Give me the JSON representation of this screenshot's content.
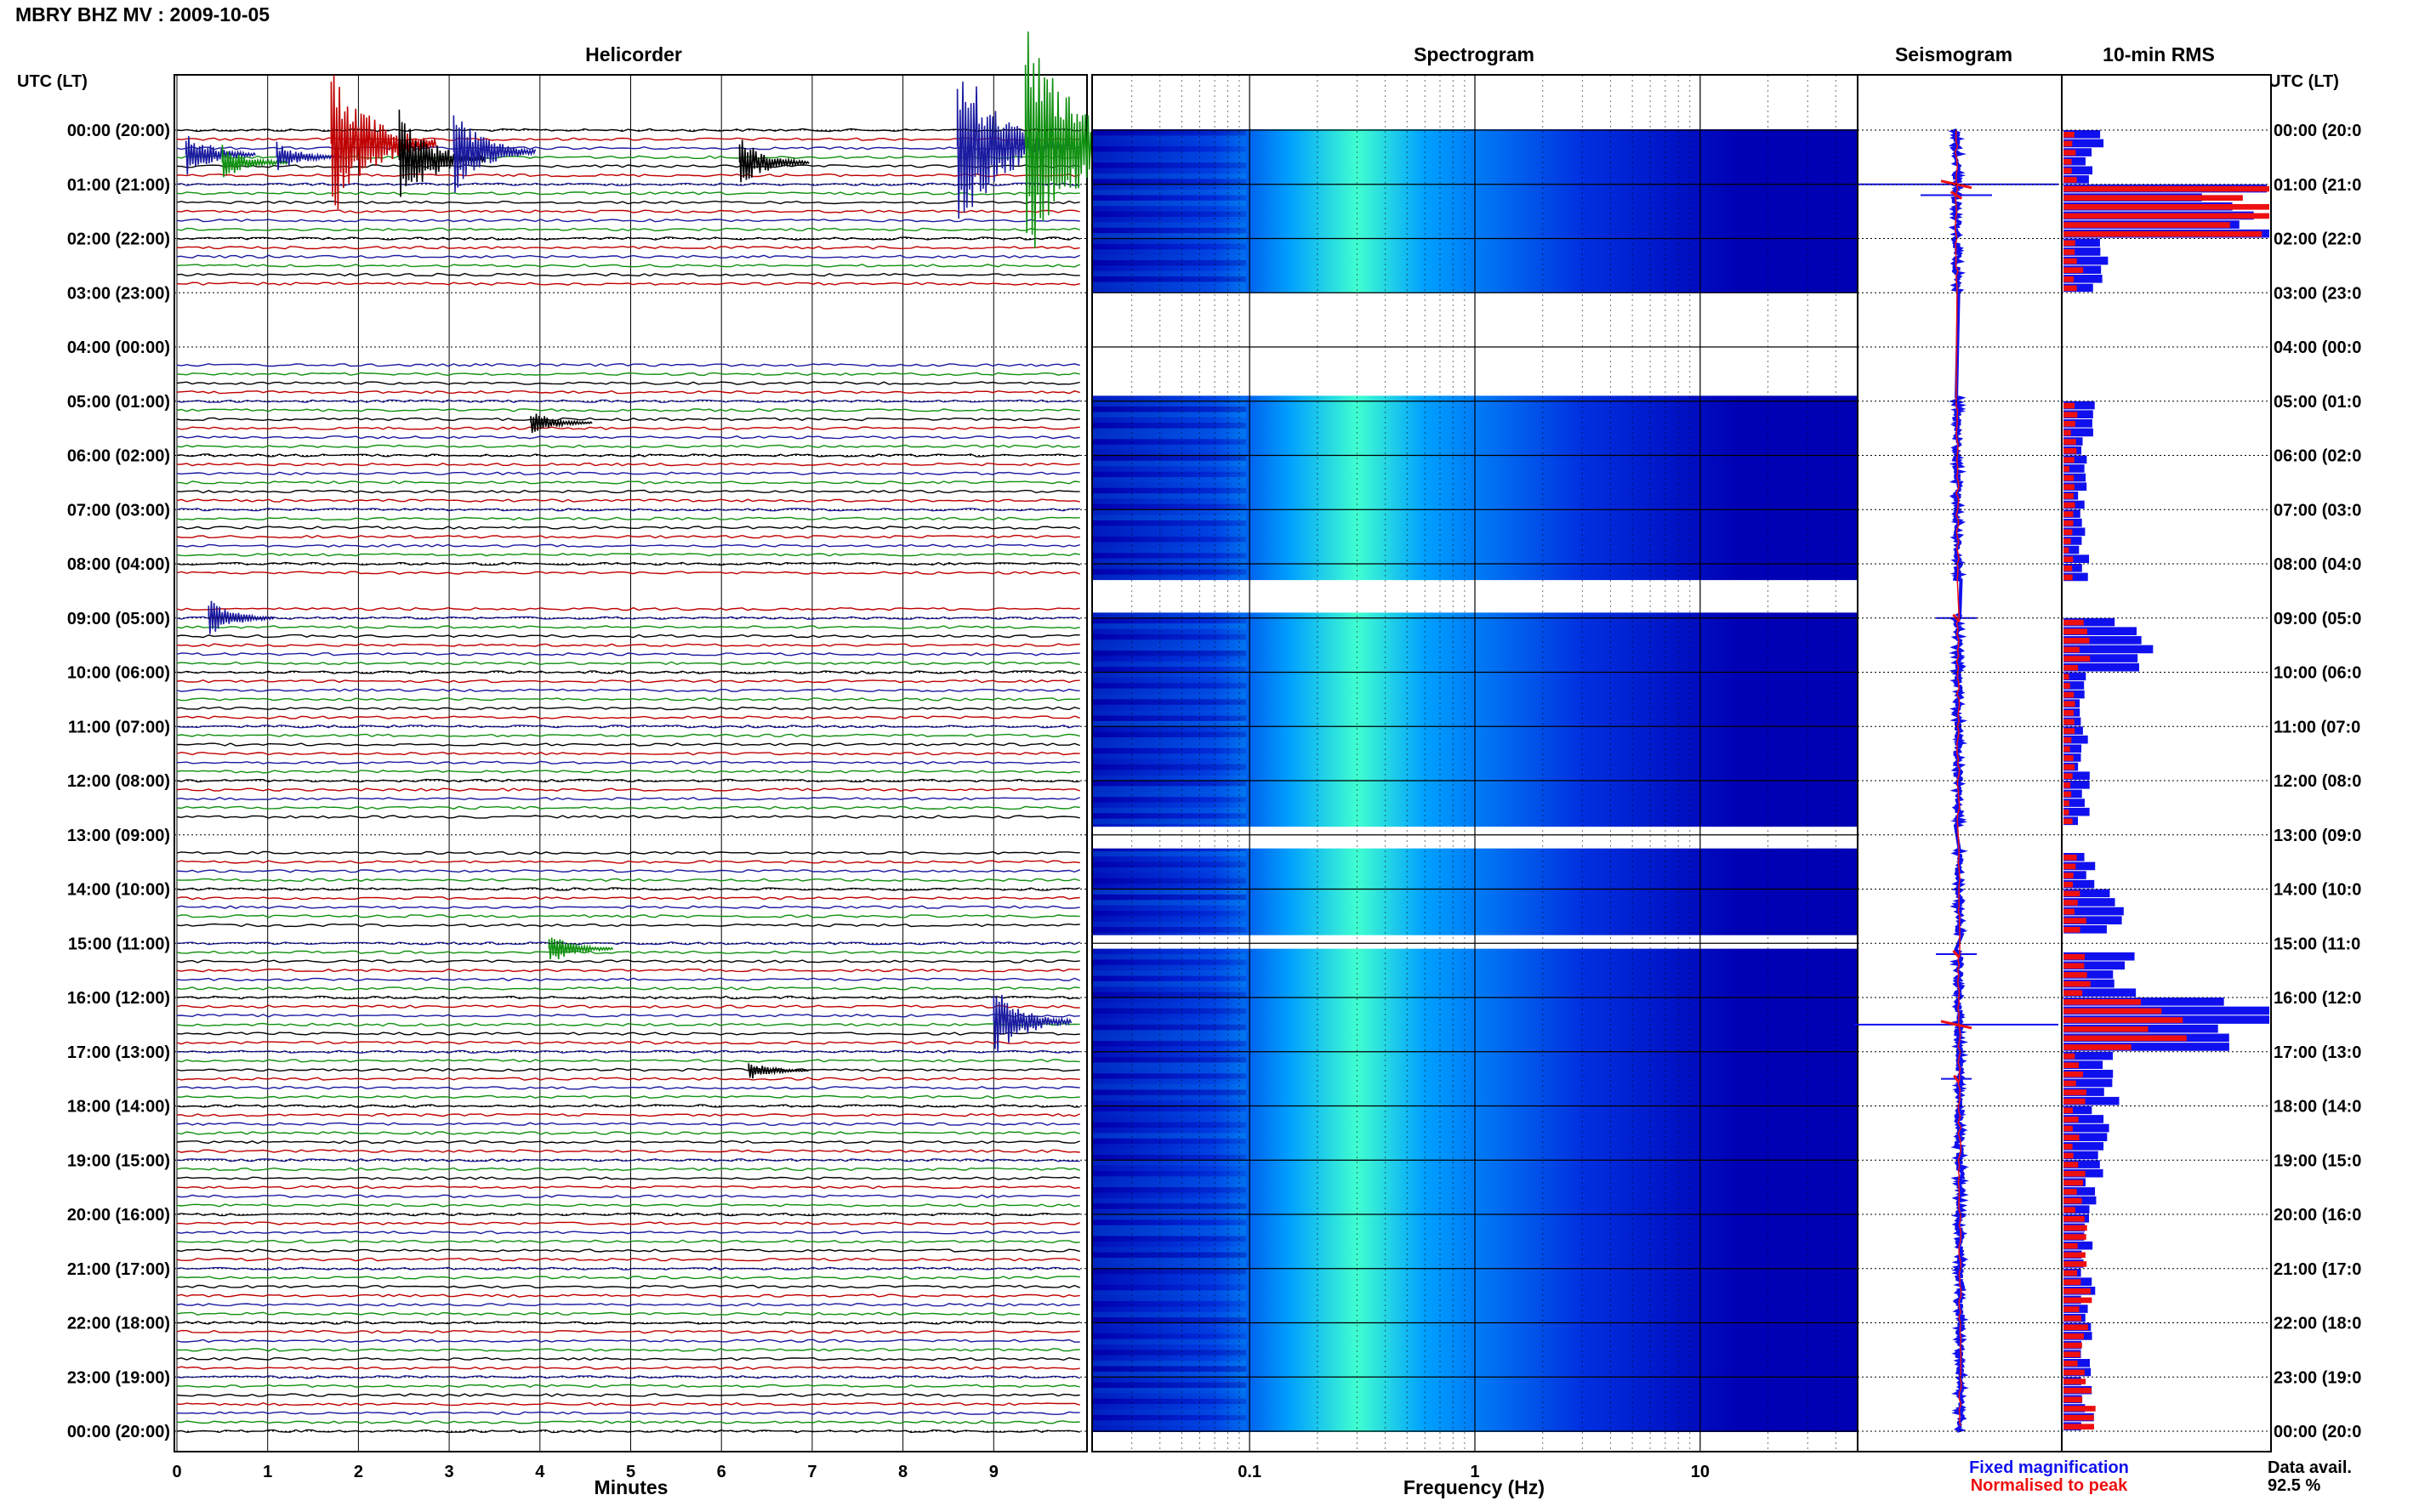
{
  "title": "MBRY BHZ MV : 2009-10-05",
  "headers": {
    "utc_left": "UTC (LT)",
    "helicorder": "Helicorder",
    "spectrogram": "Spectrogram",
    "seismogram": "Seismogram",
    "rms": "10-min RMS",
    "utc_right": "UTC (LT)"
  },
  "xlabels": {
    "helicorder": "Minutes",
    "spectrogram": "Frequency (Hz)"
  },
  "legend": {
    "fixed": "Fixed magnification",
    "normalised": "Normalised to peak",
    "fixed_color": "#1010ee",
    "normalised_color": "#ee1010"
  },
  "data_avail": {
    "label": "Data avail.",
    "value": "92.5 %"
  },
  "time_labels": [
    "00:00 (20:00)",
    "01:00 (21:00)",
    "02:00 (22:00)",
    "03:00 (23:00)",
    "04:00 (00:00)",
    "05:00 (01:00)",
    "06:00 (02:00)",
    "07:00 (03:00)",
    "08:00 (04:00)",
    "09:00 (05:00)",
    "10:00 (06:00)",
    "11:00 (07:00)",
    "12:00 (08:00)",
    "13:00 (09:00)",
    "14:00 (10:00)",
    "15:00 (11:00)",
    "16:00 (12:00)",
    "17:00 (13:00)",
    "18:00 (14:00)",
    "19:00 (15:00)",
    "20:00 (16:00)",
    "21:00 (17:00)",
    "22:00 (18:00)",
    "23:00 (19:00)",
    "00:00 (20:00)"
  ],
  "time_labels_right": [
    "00:00 (20:0",
    "01:00 (21:0",
    "02:00 (22:0",
    "03:00 (23:0",
    "04:00 (00:0",
    "05:00 (01:0",
    "06:00 (02:0",
    "07:00 (03:0",
    "08:00 (04:0",
    "09:00 (05:0",
    "10:00 (06:0",
    "11:00 (07:0",
    "12:00 (08:0",
    "13:00 (09:0",
    "14:00 (10:0",
    "15:00 (11:0",
    "16:00 (12:0",
    "17:00 (13:0",
    "18:00 (14:0",
    "19:00 (15:0",
    "20:00 (16:0",
    "21:00 (17:0",
    "22:00 (18:0",
    "23:00 (19:0",
    "00:00 (20:0"
  ],
  "chart_data": [
    {
      "type": "line",
      "name": "Helicorder",
      "x_ticks": [
        "0",
        "1",
        "2",
        "3",
        "4",
        "5",
        "6",
        "7",
        "8",
        "9"
      ],
      "xlabel": "Minutes",
      "xlim": [
        0,
        10
      ],
      "rows_per_hour": 6,
      "trace_colors": [
        "#000000",
        "#c00000",
        "#1a1aa0",
        "#109010"
      ],
      "events": [
        {
          "hour": 0.45,
          "minute": 0.1,
          "amp": 0.8,
          "color": "#1a1aa0"
        },
        {
          "hour": 0.6,
          "minute": 0.5,
          "amp": 0.6,
          "color": "#109010"
        },
        {
          "hour": 0.5,
          "minute": 1.1,
          "amp": 0.5,
          "color": "#1a1aa0"
        },
        {
          "hour": 0.25,
          "minute": 1.7,
          "amp": 2.5,
          "color": "#c00000"
        },
        {
          "hour": 0.55,
          "minute": 2.45,
          "amp": 1.6,
          "color": "#000000"
        },
        {
          "hour": 0.4,
          "minute": 3.05,
          "amp": 1.4,
          "color": "#1a1aa0"
        },
        {
          "hour": 0.6,
          "minute": 6.2,
          "amp": 0.8,
          "color": "#000000"
        },
        {
          "hour": 0.3,
          "minute": 8.6,
          "amp": 3.0,
          "color": "#1a1aa0"
        },
        {
          "hour": 0.3,
          "minute": 9.35,
          "amp": 4.0,
          "color": "#109010"
        },
        {
          "hour": 5.4,
          "minute": 3.9,
          "amp": 0.4,
          "color": "#000000"
        },
        {
          "hour": 9.0,
          "minute": 0.35,
          "amp": 0.6,
          "color": "#1a1aa0"
        },
        {
          "hour": 15.1,
          "minute": 4.1,
          "amp": 0.5,
          "color": "#109010"
        },
        {
          "hour": 16.45,
          "minute": 9.0,
          "amp": 1.2,
          "color": "#1a1aa0"
        },
        {
          "hour": 17.35,
          "minute": 6.3,
          "amp": 0.3,
          "color": "#000000"
        }
      ],
      "gaps": [
        {
          "from_hour": 3.0,
          "to_hour": 4.3
        },
        {
          "from_hour": 8.3,
          "to_hour": 8.8
        },
        {
          "from_hour": 12.8,
          "to_hour": 13.2
        },
        {
          "from_hour": 14.7,
          "to_hour": 14.95
        }
      ]
    },
    {
      "type": "heatmap",
      "name": "Spectrogram",
      "xlabel": "Frequency (Hz)",
      "x_scale": "log",
      "xlim": [
        0.02,
        50
      ],
      "x_ticks": [
        "0.1",
        "1",
        "10"
      ],
      "peak_frequency_hz": 0.3,
      "colormap": [
        "#0000b4",
        "#0030e0",
        "#00a0ff",
        "#40ffd0",
        "#ffff40"
      ],
      "gaps": [
        {
          "from_hour": 3.0,
          "to_hour": 4.9
        },
        {
          "from_hour": 8.3,
          "to_hour": 8.9
        },
        {
          "from_hour": 12.85,
          "to_hour": 13.25
        },
        {
          "from_hour": 14.85,
          "to_hour": 15.1
        }
      ]
    },
    {
      "type": "line",
      "name": "Seismogram",
      "series": [
        {
          "name": "Fixed magnification",
          "color": "#1010ee"
        },
        {
          "name": "Normalised to peak",
          "color": "#ee1010"
        }
      ],
      "spikes": [
        {
          "hour": 1.0,
          "amp": 1.0
        },
        {
          "hour": 1.2,
          "amp": 0.35
        },
        {
          "hour": 9.0,
          "amp": 0.2
        },
        {
          "hour": 15.2,
          "amp": 0.2
        },
        {
          "hour": 16.5,
          "amp": 1.0
        },
        {
          "hour": 17.5,
          "amp": 0.15
        }
      ]
    },
    {
      "type": "bar",
      "name": "10-min RMS",
      "orientation": "horizontal",
      "bins_per_hour": 6,
      "series": [
        {
          "name": "Fixed magnification",
          "color": "#1010ee"
        },
        {
          "name": "Normalised to peak",
          "color": "#ee1010"
        }
      ],
      "fixed_levels_by_hour": [
        0.15,
        0.95,
        0.2,
        0.15,
        0.2,
        0.12,
        0.1,
        0.1,
        0.1,
        0.35,
        0.1,
        0.1,
        0.1,
        0.12,
        0.25,
        0.3,
        0.95,
        0.25,
        0.18,
        0.15,
        0.12,
        0.12,
        0.12,
        0.12
      ],
      "normalised_levels_by_hour": [
        0.05,
        1.0,
        0.08,
        0.05,
        0.06,
        0.05,
        0.04,
        0.04,
        0.04,
        0.1,
        0.04,
        0.04,
        0.04,
        0.05,
        0.08,
        0.1,
        0.5,
        0.08,
        0.06,
        0.08,
        0.1,
        0.1,
        0.1,
        0.12
      ]
    }
  ]
}
